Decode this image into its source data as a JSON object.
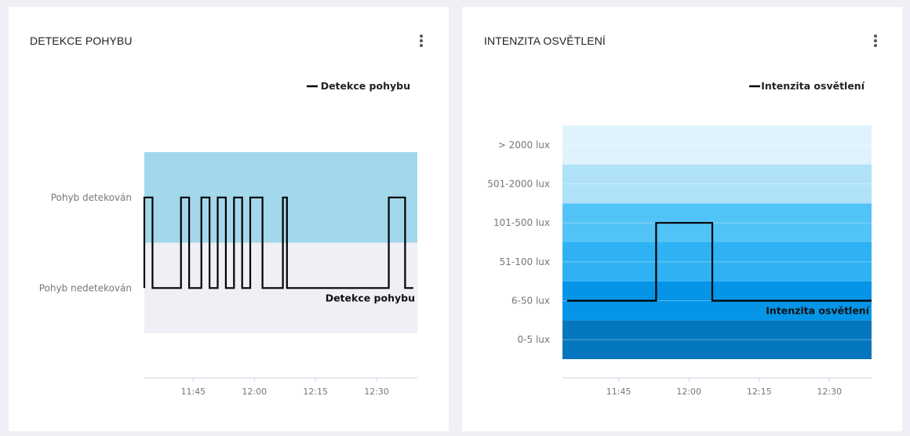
{
  "cards": [
    {
      "title": "DETEKCE POHYBU",
      "menu_icon": "more-vertical-icon"
    },
    {
      "title": "INTENZITA OSVĚTLENÍ",
      "menu_icon": "more-vertical-icon"
    }
  ],
  "chart_data": [
    {
      "type": "line",
      "step": true,
      "legend": [
        "Detekce pohybu"
      ],
      "legend_position": "top-right",
      "series": [
        {
          "name": "Detekce pohybu",
          "color": "#000000",
          "points": [
            [
              "11:33",
              0
            ],
            [
              "11:33",
              1
            ],
            [
              "11:35",
              1
            ],
            [
              "11:35",
              0
            ],
            [
              "11:42",
              0
            ],
            [
              "11:42",
              1
            ],
            [
              "11:44",
              1
            ],
            [
              "11:44",
              0
            ],
            [
              "11:47",
              0
            ],
            [
              "11:47",
              1
            ],
            [
              "11:49",
              1
            ],
            [
              "11:49",
              0
            ],
            [
              "11:51",
              0
            ],
            [
              "11:51",
              1
            ],
            [
              "11:53",
              1
            ],
            [
              "11:53",
              0
            ],
            [
              "11:55",
              0
            ],
            [
              "11:55",
              1
            ],
            [
              "11:57",
              1
            ],
            [
              "11:57",
              0
            ],
            [
              "11:59",
              0
            ],
            [
              "11:59",
              1
            ],
            [
              "12:02",
              1
            ],
            [
              "12:02",
              0
            ],
            [
              "12:07",
              0
            ],
            [
              "12:07",
              1
            ],
            [
              "12:08",
              1
            ],
            [
              "12:08",
              0
            ],
            [
              "12:33",
              0
            ],
            [
              "12:33",
              1
            ],
            [
              "12:37",
              1
            ],
            [
              "12:37",
              0
            ],
            [
              "12:39",
              0
            ]
          ]
        }
      ],
      "y_categories": [
        "Pohyb nedetekován",
        "Pohyb detekován"
      ],
      "bands": [
        {
          "from": -0.5,
          "to": 0.5,
          "color": "#eff0f5"
        },
        {
          "from": 0.5,
          "to": 1.5,
          "color": "#a3d8ec"
        }
      ],
      "x_ticks": [
        "11:45",
        "12:00",
        "12:15",
        "12:30"
      ],
      "x_range": [
        "11:33",
        "12:40"
      ],
      "xlabel": "",
      "ylabel": "",
      "grid": false
    },
    {
      "type": "line",
      "step": true,
      "legend": [
        "Intenzita osvětlení"
      ],
      "legend_position": "top-right",
      "series": [
        {
          "name": "Intenzita osvětlení",
          "color": "#000000",
          "points": [
            [
              "11:34",
              "6-50 lux"
            ],
            [
              "11:53",
              "6-50 lux"
            ],
            [
              "11:53",
              "101-500 lux"
            ],
            [
              "12:05",
              "101-500 lux"
            ],
            [
              "12:05",
              "6-50 lux"
            ],
            [
              "12:39",
              "6-50 lux"
            ]
          ]
        }
      ],
      "y_categories": [
        "0-5 lux",
        "6-50 lux",
        "51-100 lux",
        "101-500 lux",
        "501-2000 lux",
        "> 2000 lux"
      ],
      "bands": [
        {
          "category": "0-5 lux",
          "color": "#0476be"
        },
        {
          "category": "6-50 lux",
          "color": "#0594e6"
        },
        {
          "category": "51-100 lux",
          "color": "#2eb2f4"
        },
        {
          "category": "101-500 lux",
          "color": "#52c3f6"
        },
        {
          "category": "501-2000 lux",
          "color": "#afe2f9"
        },
        {
          "category": "> 2000 lux",
          "color": "#dff3fc"
        }
      ],
      "x_ticks": [
        "11:45",
        "12:00",
        "12:15",
        "12:30"
      ],
      "x_range": [
        "11:33",
        "12:39"
      ],
      "xlabel": "",
      "ylabel": "",
      "grid": true
    }
  ]
}
